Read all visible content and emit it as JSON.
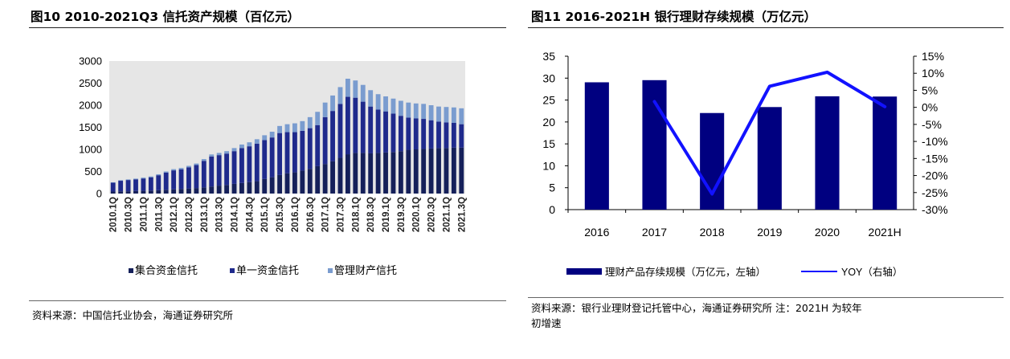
{
  "left": {
    "title": "图10 2010-2021Q3 信托资产规模（百亿元）",
    "source": "资料来源：中国信托业协会，海通证券研究所"
  },
  "right": {
    "title": "图11 2016-2021H 银行理财存续规模（万亿元）",
    "source_line1": "资料来源：银行业理财登记托管中心，海通证券研究所 注：2021H 为较年",
    "source_line2": "初增速"
  },
  "colors": {
    "navy": "#000080",
    "dark_navy": "#0f1a44",
    "collective": "#15205a",
    "single": "#1f2a8c",
    "management": "#7a9ccf",
    "plot_bg": "#e6e6e6",
    "yoy": "#1212ff"
  },
  "chart_data": [
    {
      "type": "bar",
      "stacked": true,
      "categories": [
        "2010.1Q",
        "2010.2Q",
        "2010.3Q",
        "2010.4Q",
        "2011.1Q",
        "2011.2Q",
        "2011.3Q",
        "2011.4Q",
        "2012.1Q",
        "2012.2Q",
        "2012.3Q",
        "2012.4Q",
        "2013.1Q",
        "2013.2Q",
        "2013.3Q",
        "2013.4Q",
        "2014.1Q",
        "2014.2Q",
        "2014.3Q",
        "2014.4Q",
        "2015.1Q",
        "2015.2Q",
        "2015.3Q",
        "2015.4Q",
        "2016.1Q",
        "2016.2Q",
        "2016.3Q",
        "2016.4Q",
        "2017.1Q",
        "2017.2Q",
        "2017.3Q",
        "2017.4Q",
        "2018.1Q",
        "2018.2Q",
        "2018.3Q",
        "2018.4Q",
        "2019.1Q",
        "2019.2Q",
        "2019.3Q",
        "2019.4Q",
        "2020.1Q",
        "2020.2Q",
        "2020.3Q",
        "2020.4Q",
        "2021.1Q",
        "2021.2Q",
        "2021.3Q"
      ],
      "tick_labels": [
        "2010.1Q",
        "2010.3Q",
        "2011.1Q",
        "2011.3Q",
        "2012.1Q",
        "2012.3Q",
        "2013.1Q",
        "2013.3Q",
        "2014.1Q",
        "2014.3Q",
        "2015.1Q",
        "2015.3Q",
        "2016.1Q",
        "2016.3Q",
        "2017.1Q",
        "2017.3Q",
        "2018.1Q",
        "2018.3Q",
        "2019.1Q",
        "2019.3Q",
        "2020.1Q",
        "2020.3Q",
        "2021.1Q",
        "2021.3Q"
      ],
      "series": [
        {
          "name": "集合资金信托",
          "values": [
            45,
            50,
            52,
            58,
            62,
            68,
            75,
            85,
            95,
            105,
            115,
            125,
            140,
            160,
            180,
            195,
            220,
            240,
            260,
            280,
            330,
            370,
            420,
            460,
            480,
            520,
            560,
            620,
            670,
            730,
            810,
            890,
            920,
            920,
            910,
            920,
            930,
            940,
            960,
            990,
            1000,
            1010,
            1020,
            1030,
            1030,
            1040,
            1040
          ]
        },
        {
          "name": "单一资金信托",
          "values": [
            200,
            240,
            255,
            265,
            280,
            300,
            340,
            390,
            430,
            445,
            480,
            520,
            600,
            680,
            690,
            710,
            740,
            790,
            810,
            850,
            880,
            900,
            950,
            930,
            910,
            900,
            920,
            930,
            1060,
            1140,
            1220,
            1300,
            1250,
            1160,
            1060,
            980,
            930,
            870,
            800,
            730,
            700,
            680,
            640,
            600,
            580,
            560,
            530
          ]
        },
        {
          "name": "管理财产信托",
          "values": [
            10,
            12,
            13,
            15,
            18,
            20,
            22,
            25,
            28,
            30,
            32,
            35,
            40,
            45,
            50,
            55,
            70,
            80,
            90,
            100,
            110,
            130,
            160,
            180,
            200,
            220,
            250,
            300,
            330,
            350,
            380,
            410,
            390,
            380,
            370,
            350,
            340,
            340,
            340,
            340,
            340,
            340,
            340,
            340,
            350,
            350,
            360
          ]
        }
      ],
      "ylim": [
        0,
        3000
      ],
      "yticks": [
        "0",
        "500",
        "1000",
        "1500",
        "2000",
        "2500",
        "3000"
      ],
      "legend_position": "bottom"
    },
    {
      "type": "bar+line",
      "categories": [
        "2016",
        "2017",
        "2018",
        "2019",
        "2020",
        "2021H"
      ],
      "series": [
        {
          "name": "理财产品存续规模（万亿元，左轴）",
          "kind": "bar",
          "axis": "left",
          "values": [
            29.05,
            29.54,
            22.04,
            23.4,
            25.86,
            25.8
          ]
        },
        {
          "name": "YOY（右轴）",
          "kind": "line",
          "axis": "right",
          "values": [
            null,
            1.7,
            -25.4,
            6.2,
            10.3,
            0.2
          ]
        }
      ],
      "ylim_left": [
        0,
        35
      ],
      "yticks_left": [
        "0",
        "5",
        "10",
        "15",
        "20",
        "25",
        "30",
        "35"
      ],
      "ylim_right": [
        -30,
        15
      ],
      "yticks_right": [
        "-30%",
        "-25%",
        "-20%",
        "-15%",
        "-10%",
        "-5%",
        "0%",
        "5%",
        "10%",
        "15%"
      ],
      "legend_position": "bottom"
    }
  ]
}
